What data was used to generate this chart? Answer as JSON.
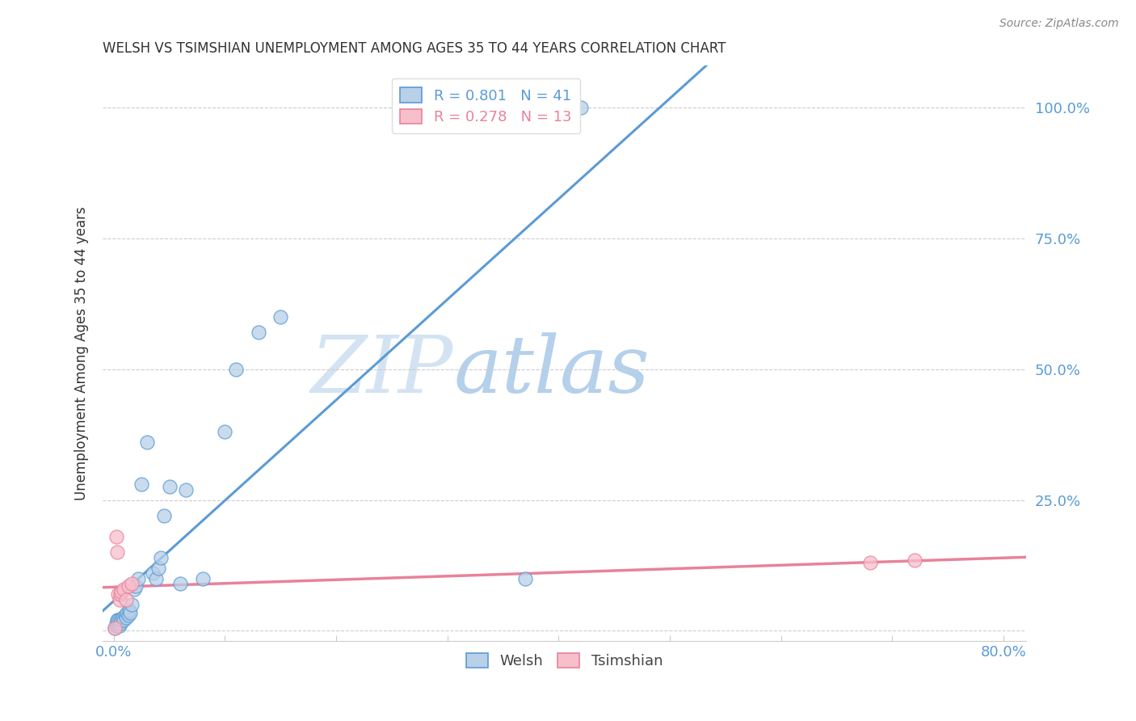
{
  "title": "WELSH VS TSIMSHIAN UNEMPLOYMENT AMONG AGES 35 TO 44 YEARS CORRELATION CHART",
  "source": "Source: ZipAtlas.com",
  "ylabel": "Unemployment Among Ages 35 to 44 years",
  "legend_label1": "Welsh",
  "legend_label2": "Tsimshian",
  "r1": 0.801,
  "n1": 41,
  "r2": 0.278,
  "n2": 13,
  "welsh_color": "#b8d0e8",
  "tsimshian_color": "#f7bfcc",
  "welsh_line_color": "#5b9bd5",
  "tsimshian_line_color": "#e8829a",
  "welsh_x": [
    0.001,
    0.002,
    0.002,
    0.003,
    0.003,
    0.004,
    0.004,
    0.005,
    0.005,
    0.006,
    0.007,
    0.008,
    0.009,
    0.01,
    0.011,
    0.012,
    0.013,
    0.014,
    0.015,
    0.016,
    0.018,
    0.02,
    0.022,
    0.025,
    0.03,
    0.035,
    0.038,
    0.04,
    0.042,
    0.045,
    0.05,
    0.06,
    0.065,
    0.08,
    0.1,
    0.11,
    0.13,
    0.15,
    0.37,
    0.39,
    0.42
  ],
  "welsh_y": [
    0.005,
    0.01,
    0.015,
    0.01,
    0.02,
    0.015,
    0.02,
    0.01,
    0.02,
    0.015,
    0.02,
    0.025,
    0.02,
    0.03,
    0.025,
    0.035,
    0.03,
    0.04,
    0.035,
    0.05,
    0.08,
    0.085,
    0.1,
    0.28,
    0.36,
    0.11,
    0.1,
    0.12,
    0.14,
    0.22,
    0.275,
    0.09,
    0.27,
    0.1,
    0.38,
    0.5,
    0.57,
    0.6,
    0.1,
    1.0,
    1.0
  ],
  "tsimshian_x": [
    0.001,
    0.002,
    0.003,
    0.004,
    0.005,
    0.006,
    0.007,
    0.009,
    0.011,
    0.013,
    0.016,
    0.68,
    0.72
  ],
  "tsimshian_y": [
    0.005,
    0.18,
    0.15,
    0.07,
    0.06,
    0.07,
    0.075,
    0.08,
    0.06,
    0.085,
    0.09,
    0.13,
    0.135
  ],
  "xlim": [
    -0.01,
    0.82
  ],
  "ylim": [
    -0.02,
    1.08
  ],
  "xticks": [
    0.0,
    0.1,
    0.2,
    0.3,
    0.4,
    0.5,
    0.6,
    0.7,
    0.8
  ],
  "yticks": [
    0.0,
    0.25,
    0.5,
    0.75,
    1.0
  ],
  "watermark_zip": "ZIP",
  "watermark_atlas": "atlas",
  "background_color": "#ffffff",
  "grid_color": "#cccccc",
  "title_color": "#333333",
  "source_color": "#888888",
  "axis_label_color": "#333333",
  "tick_label_color": "#5b9bd5",
  "spine_color": "#cccccc"
}
